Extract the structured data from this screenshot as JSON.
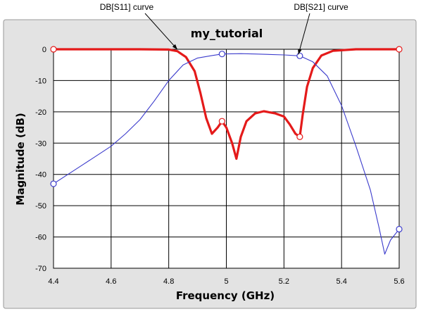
{
  "chart_data": {
    "type": "line",
    "title": "my_tutorial",
    "xlabel": "Frequency (GHz)",
    "ylabel": "Magnitude (dB)",
    "xlim": [
      4.4,
      5.6
    ],
    "ylim": [
      -70,
      0
    ],
    "x_ticks": [
      4.4,
      4.6,
      4.8,
      5.0,
      5.2,
      5.4,
      5.6
    ],
    "x_tick_labels": [
      "4.4",
      "4.6",
      "4.8",
      "5",
      "5.2",
      "5.4",
      "5.6"
    ],
    "y_ticks": [
      0,
      -10,
      -20,
      -30,
      -40,
      -50,
      -60,
      -70
    ],
    "y_tick_labels": [
      "0",
      "-10",
      "-20",
      "-30",
      "-40",
      "-50",
      "-60",
      "-70"
    ],
    "grid": true,
    "annotations": [
      {
        "text": "DB[S11] curve",
        "series": 0,
        "x": 4.83,
        "y": -0.5
      },
      {
        "text": "DB[S21] curve",
        "series": 1,
        "x": 5.25,
        "y": -2.1
      }
    ],
    "series": [
      {
        "color": "#e41a1a",
        "x": [
          4.4,
          4.6,
          4.7,
          4.8,
          4.83,
          4.86,
          4.89,
          4.91,
          4.93,
          4.95,
          4.97,
          4.985,
          5.0,
          5.02,
          5.035,
          5.05,
          5.07,
          5.1,
          5.13,
          5.17,
          5.2,
          5.22,
          5.24,
          5.255,
          5.265,
          5.28,
          5.3,
          5.33,
          5.37,
          5.45,
          5.6
        ],
        "y": [
          0,
          0,
          0,
          -0.1,
          -0.6,
          -2.5,
          -7,
          -14,
          -22,
          -27,
          -25,
          -23,
          -25,
          -30,
          -35,
          -28,
          -23,
          -20.5,
          -19.8,
          -20.5,
          -21.5,
          -24,
          -27,
          -28,
          -21,
          -12,
          -6,
          -2,
          -0.5,
          0,
          0
        ]
      },
      {
        "color": "#3b3bcc",
        "x": [
          4.4,
          4.45,
          4.5,
          4.55,
          4.6,
          4.65,
          4.7,
          4.75,
          4.8,
          4.85,
          4.9,
          4.95,
          4.985,
          5.05,
          5.1,
          5.2,
          5.255,
          5.3,
          5.35,
          5.4,
          5.45,
          5.5,
          5.53,
          5.55,
          5.57,
          5.6
        ],
        "y": [
          -43,
          -40,
          -37,
          -34,
          -31,
          -27,
          -22.5,
          -16.5,
          -10,
          -5,
          -2.8,
          -2.0,
          -1.5,
          -1.4,
          -1.5,
          -1.8,
          -2.1,
          -4,
          -8.5,
          -18,
          -31,
          -45,
          -57,
          -65.5,
          -61,
          -57.5
        ]
      }
    ],
    "markers": [
      {
        "series": 0,
        "x": 4.4,
        "y": 0
      },
      {
        "series": 0,
        "x": 4.985,
        "y": -23
      },
      {
        "series": 0,
        "x": 5.255,
        "y": -28
      },
      {
        "series": 0,
        "x": 5.6,
        "y": 0
      },
      {
        "series": 1,
        "x": 4.4,
        "y": -43
      },
      {
        "series": 1,
        "x": 4.985,
        "y": -1.5
      },
      {
        "series": 1,
        "x": 5.255,
        "y": -2.1
      },
      {
        "series": 1,
        "x": 5.6,
        "y": -57.5
      }
    ]
  }
}
